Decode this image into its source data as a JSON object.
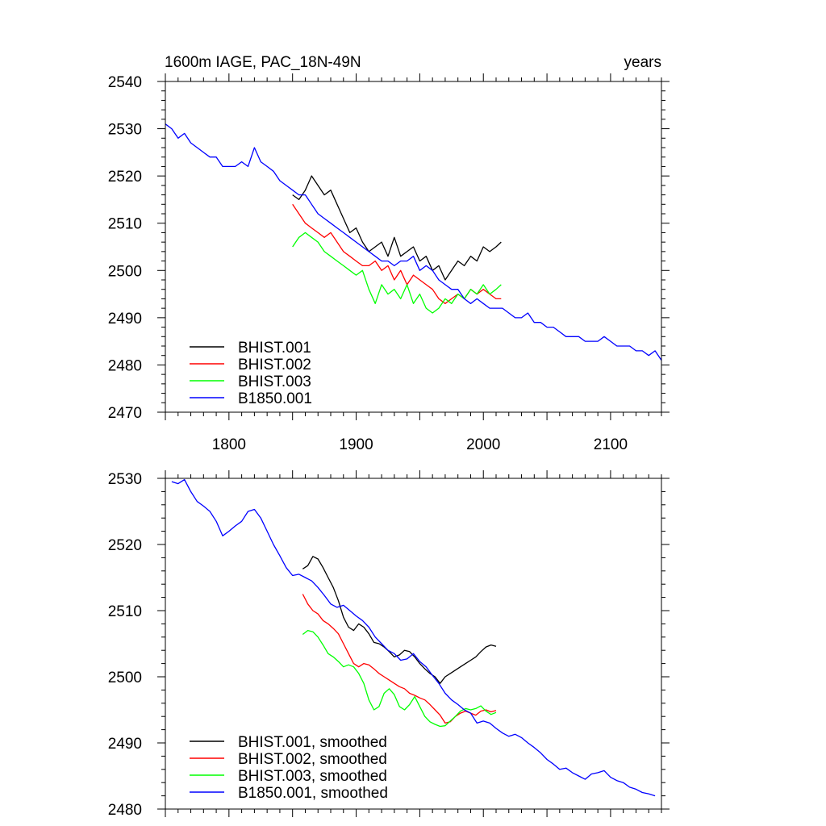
{
  "chart_data": [
    {
      "type": "line",
      "title_left": "1600m IAGE, PAC_18N-49N",
      "title_right": "years",
      "xlim": [
        1750,
        2140
      ],
      "ylim": [
        2470,
        2540
      ],
      "xticks": [
        1800,
        1900,
        2000,
        2100
      ],
      "yticks": [
        2470,
        2480,
        2490,
        2500,
        2510,
        2520,
        2530,
        2540
      ],
      "legend": "bottom-left",
      "series": [
        {
          "name": "BHIST.001",
          "color": "#000000",
          "x": [
            1850,
            1855,
            1860,
            1865,
            1870,
            1875,
            1880,
            1885,
            1890,
            1895,
            1900,
            1905,
            1910,
            1915,
            1920,
            1925,
            1930,
            1935,
            1940,
            1945,
            1950,
            1955,
            1960,
            1965,
            1970,
            1975,
            1980,
            1985,
            1990,
            1995,
            2000,
            2005,
            2010,
            2014
          ],
          "y": [
            2516,
            2515,
            2517,
            2520,
            2518,
            2516,
            2517,
            2514,
            2511,
            2508,
            2509,
            2506,
            2504,
            2505,
            2506,
            2503,
            2507,
            2503,
            2504,
            2505,
            2502,
            2503,
            2500,
            2501,
            2498,
            2500,
            2502,
            2501,
            2503,
            2502,
            2505,
            2504,
            2505,
            2506
          ]
        },
        {
          "name": "BHIST.002",
          "color": "#ff0000",
          "x": [
            1850,
            1855,
            1860,
            1865,
            1870,
            1875,
            1880,
            1885,
            1890,
            1895,
            1900,
            1905,
            1910,
            1915,
            1920,
            1925,
            1930,
            1935,
            1940,
            1945,
            1950,
            1955,
            1960,
            1965,
            1970,
            1975,
            1980,
            1985,
            1990,
            1995,
            2000,
            2005,
            2010,
            2014
          ],
          "y": [
            2514,
            2512,
            2510,
            2509,
            2508,
            2507,
            2508,
            2506,
            2504,
            2503,
            2502,
            2501,
            2501,
            2502,
            2500,
            2501,
            2498,
            2500,
            2497,
            2499,
            2498,
            2497,
            2496,
            2494,
            2493,
            2494,
            2495,
            2494,
            2496,
            2495,
            2496,
            2495,
            2494,
            2494
          ]
        },
        {
          "name": "BHIST.003",
          "color": "#00ff00",
          "x": [
            1850,
            1855,
            1860,
            1865,
            1870,
            1875,
            1880,
            1885,
            1890,
            1895,
            1900,
            1905,
            1910,
            1915,
            1920,
            1925,
            1930,
            1935,
            1940,
            1945,
            1950,
            1955,
            1960,
            1965,
            1970,
            1975,
            1980,
            1985,
            1990,
            1995,
            2000,
            2005,
            2010,
            2014
          ],
          "y": [
            2505,
            2507,
            2508,
            2507,
            2506,
            2504,
            2503,
            2502,
            2501,
            2500,
            2499,
            2500,
            2496,
            2493,
            2497,
            2495,
            2496,
            2494,
            2497,
            2493,
            2495,
            2492,
            2491,
            2492,
            2494,
            2493,
            2495,
            2494,
            2496,
            2495,
            2497,
            2495,
            2496,
            2497
          ]
        },
        {
          "name": "B1850.001",
          "color": "#0000ff",
          "x": [
            1750,
            1755,
            1760,
            1765,
            1770,
            1775,
            1780,
            1785,
            1790,
            1795,
            1800,
            1805,
            1810,
            1815,
            1820,
            1825,
            1830,
            1835,
            1840,
            1845,
            1850,
            1855,
            1860,
            1865,
            1870,
            1875,
            1880,
            1885,
            1890,
            1895,
            1900,
            1905,
            1910,
            1915,
            1920,
            1925,
            1930,
            1935,
            1940,
            1945,
            1950,
            1955,
            1960,
            1965,
            1970,
            1975,
            1980,
            1985,
            1990,
            1995,
            2000,
            2005,
            2010,
            2015,
            2020,
            2025,
            2030,
            2035,
            2040,
            2045,
            2050,
            2055,
            2060,
            2065,
            2070,
            2075,
            2080,
            2085,
            2090,
            2095,
            2100,
            2105,
            2110,
            2115,
            2120,
            2125,
            2130,
            2135,
            2140
          ],
          "y": [
            2531,
            2530,
            2528,
            2529,
            2527,
            2526,
            2525,
            2524,
            2524,
            2522,
            2522,
            2522,
            2523,
            2522,
            2526,
            2523,
            2522,
            2521,
            2519,
            2518,
            2517,
            2516,
            2516,
            2514,
            2512,
            2511,
            2510,
            2509,
            2508,
            2507,
            2506,
            2505,
            2504,
            2503,
            2502,
            2502,
            2501,
            2502,
            2502,
            2503,
            2500,
            2501,
            2500,
            2498,
            2497,
            2496,
            2496,
            2494,
            2493,
            2494,
            2493,
            2492,
            2492,
            2492,
            2491,
            2490,
            2490,
            2491,
            2489,
            2489,
            2488,
            2488,
            2487,
            2486,
            2486,
            2486,
            2485,
            2485,
            2485,
            2486,
            2485,
            2484,
            2484,
            2484,
            2483,
            2483,
            2482,
            2483,
            2481
          ]
        }
      ]
    },
    {
      "type": "line",
      "xlim": [
        1750,
        2140
      ],
      "ylim": [
        2480,
        2530
      ],
      "yticks": [
        2480,
        2490,
        2500,
        2510,
        2520,
        2530
      ],
      "legend": "bottom-left",
      "series": [
        {
          "name": "BHIST.001, smoothed",
          "color": "#000000",
          "x": [
            1858,
            1862,
            1866,
            1870,
            1874,
            1878,
            1882,
            1886,
            1890,
            1894,
            1898,
            1902,
            1906,
            1910,
            1914,
            1918,
            1922,
            1926,
            1930,
            1934,
            1938,
            1942,
            1946,
            1950,
            1954,
            1958,
            1962,
            1966,
            1970,
            1974,
            1978,
            1982,
            1986,
            1990,
            1994,
            1998,
            2002,
            2006,
            2010
          ],
          "y": [
            2516.3,
            2516.8,
            2518.2,
            2517.8,
            2516.5,
            2515.0,
            2513.5,
            2511.5,
            2509.0,
            2507.5,
            2507.0,
            2508.0,
            2507.5,
            2506.5,
            2505.2,
            2505.0,
            2504.5,
            2503.8,
            2503.0,
            2503.3,
            2504.0,
            2503.8,
            2503.0,
            2502.0,
            2501.2,
            2500.5,
            2500.0,
            2499.0,
            2500.0,
            2500.5,
            2501.0,
            2501.5,
            2502.0,
            2502.5,
            2503.0,
            2503.8,
            2504.5,
            2504.8,
            2504.6
          ]
        },
        {
          "name": "BHIST.002, smoothed",
          "color": "#ff0000",
          "x": [
            1858,
            1862,
            1866,
            1870,
            1874,
            1878,
            1882,
            1886,
            1890,
            1894,
            1898,
            1902,
            1906,
            1910,
            1914,
            1918,
            1922,
            1926,
            1930,
            1934,
            1938,
            1942,
            1946,
            1950,
            1954,
            1958,
            1962,
            1966,
            1970,
            1974,
            1978,
            1982,
            1986,
            1990,
            1994,
            1998,
            2002,
            2006,
            2010
          ],
          "y": [
            2512.5,
            2511.0,
            2510.0,
            2509.5,
            2508.5,
            2508.0,
            2507.3,
            2506.5,
            2505.0,
            2503.5,
            2502.0,
            2501.5,
            2502.0,
            2501.8,
            2501.2,
            2500.5,
            2500.0,
            2499.5,
            2499.0,
            2498.5,
            2498.2,
            2497.5,
            2497.2,
            2496.8,
            2496.5,
            2495.8,
            2495.0,
            2494.2,
            2493.0,
            2493.2,
            2494.0,
            2494.5,
            2494.8,
            2494.5,
            2494.2,
            2494.8,
            2495.0,
            2494.7,
            2494.9
          ]
        },
        {
          "name": "BHIST.003, smoothed",
          "color": "#00ff00",
          "x": [
            1858,
            1862,
            1866,
            1870,
            1874,
            1878,
            1882,
            1886,
            1890,
            1894,
            1898,
            1902,
            1906,
            1910,
            1914,
            1918,
            1922,
            1926,
            1930,
            1934,
            1938,
            1942,
            1946,
            1950,
            1954,
            1958,
            1962,
            1966,
            1970,
            1974,
            1978,
            1982,
            1986,
            1990,
            1994,
            1998,
            2002,
            2006,
            2010
          ],
          "y": [
            2506.4,
            2507.0,
            2506.8,
            2506.0,
            2504.8,
            2503.5,
            2503.0,
            2502.3,
            2501.5,
            2501.8,
            2501.5,
            2500.5,
            2499.0,
            2496.5,
            2495.0,
            2495.5,
            2497.5,
            2498.2,
            2497.3,
            2495.5,
            2495.0,
            2495.8,
            2497.0,
            2495.5,
            2494.0,
            2493.2,
            2492.8,
            2492.5,
            2492.6,
            2493.3,
            2494.0,
            2494.8,
            2495.2,
            2495.0,
            2495.2,
            2495.6,
            2494.8,
            2494.3,
            2494.6
          ]
        },
        {
          "name": "B1850.001, smoothed",
          "color": "#0000ff",
          "x": [
            1755,
            1760,
            1765,
            1770,
            1775,
            1780,
            1785,
            1790,
            1795,
            1800,
            1805,
            1810,
            1815,
            1820,
            1825,
            1830,
            1835,
            1840,
            1845,
            1850,
            1855,
            1860,
            1865,
            1870,
            1875,
            1880,
            1885,
            1890,
            1895,
            1900,
            1905,
            1910,
            1915,
            1920,
            1925,
            1930,
            1935,
            1940,
            1945,
            1950,
            1955,
            1960,
            1965,
            1970,
            1975,
            1980,
            1985,
            1990,
            1995,
            2000,
            2005,
            2010,
            2015,
            2020,
            2025,
            2030,
            2035,
            2040,
            2045,
            2050,
            2055,
            2060,
            2065,
            2070,
            2075,
            2080,
            2085,
            2090,
            2095,
            2100,
            2105,
            2110,
            2115,
            2120,
            2125,
            2130,
            2135
          ],
          "y": [
            2529.5,
            2529.2,
            2529.8,
            2528.0,
            2526.5,
            2525.8,
            2525.0,
            2523.5,
            2521.3,
            2522.0,
            2522.8,
            2523.5,
            2525.0,
            2525.3,
            2524.0,
            2522.0,
            2520.0,
            2518.3,
            2516.5,
            2515.3,
            2515.5,
            2515.0,
            2514.5,
            2513.5,
            2512.3,
            2511.0,
            2510.5,
            2510.8,
            2510.0,
            2509.2,
            2508.5,
            2507.5,
            2506.0,
            2505.0,
            2504.0,
            2503.5,
            2502.5,
            2502.7,
            2503.5,
            2502.3,
            2501.5,
            2500.2,
            2499.0,
            2497.5,
            2496.5,
            2495.8,
            2495.0,
            2494.5,
            2493.0,
            2493.3,
            2493.0,
            2492.2,
            2491.5,
            2491.0,
            2491.3,
            2490.8,
            2490.0,
            2489.3,
            2488.5,
            2487.5,
            2486.8,
            2486.0,
            2486.2,
            2485.5,
            2485.0,
            2484.5,
            2485.3,
            2485.5,
            2485.8,
            2484.8,
            2484.3,
            2484.0,
            2483.3,
            2483.0,
            2482.5,
            2482.3,
            2482.0
          ]
        }
      ]
    }
  ]
}
